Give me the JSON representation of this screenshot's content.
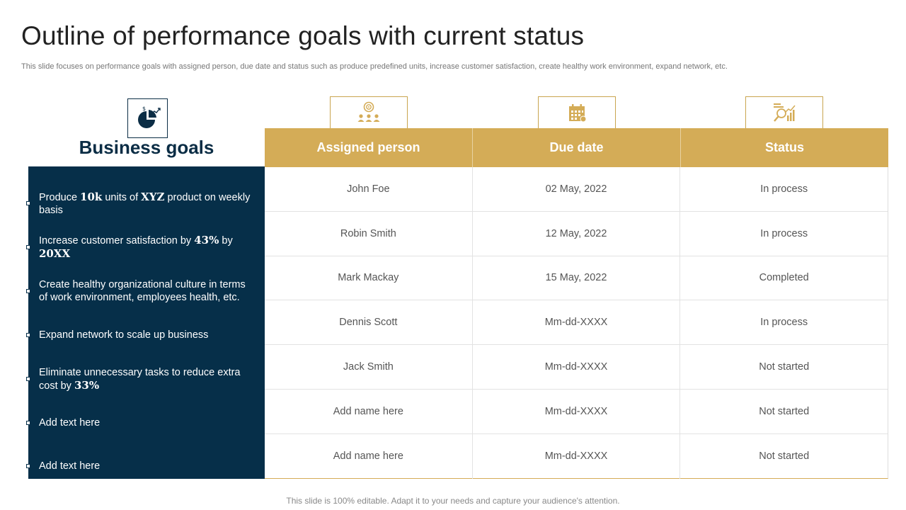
{
  "slide": {
    "title": "Outline of performance goals with current status",
    "subtitle": "This slide focuses on performance goals with assigned person, due date and status such as produce predefined units, increase customer satisfaction, create healthy work environment, expand network, etc.",
    "footer": "This slide is 100% editable. Adapt it to your needs and capture your audience's attention."
  },
  "goals": {
    "heading": "Business goals",
    "icon": "pie-chart-dollar-icon",
    "items": [
      {
        "parts": [
          "Produce ",
          {
            "b": "10k"
          },
          " units of ",
          {
            "b": "XYZ"
          },
          " product on weekly basis"
        ]
      },
      {
        "parts": [
          "Increase customer satisfaction by ",
          {
            "b": "43%"
          },
          " by ",
          {
            "b": "20XX"
          }
        ]
      },
      {
        "parts": [
          "Create healthy organizational culture in terms of work environment, employees health, etc."
        ]
      },
      {
        "parts": [
          "Expand network to scale up business"
        ]
      },
      {
        "parts": [
          "Eliminate unnecessary tasks to reduce extra cost by ",
          {
            "b": "33%"
          }
        ]
      },
      {
        "parts": [
          "Add text here"
        ]
      },
      {
        "parts": [
          "Add text here"
        ]
      }
    ]
  },
  "table": {
    "columns": [
      {
        "label": "Assigned person",
        "icon": "team-target-icon"
      },
      {
        "label": "Due date",
        "icon": "calendar-icon"
      },
      {
        "label": "Status",
        "icon": "analytics-chart-icon"
      }
    ],
    "rows": [
      [
        "John Foe",
        "02 May, 2022",
        "In process"
      ],
      [
        "Robin Smith",
        "12 May, 2022",
        "In process"
      ],
      [
        "Mark Mackay",
        "15 May, 2022",
        "Completed"
      ],
      [
        "Dennis Scott",
        "Mm-dd-XXXX",
        "In process"
      ],
      [
        "Jack Smith",
        "Mm-dd-XXXX",
        "Not started"
      ],
      [
        "Add name here",
        "Mm-dd-XXXX",
        "Not started"
      ],
      [
        "Add name here",
        "Mm-dd-XXXX",
        "Not started"
      ]
    ]
  },
  "colors": {
    "navy": "#062f49",
    "gold": "#d4ac57"
  }
}
